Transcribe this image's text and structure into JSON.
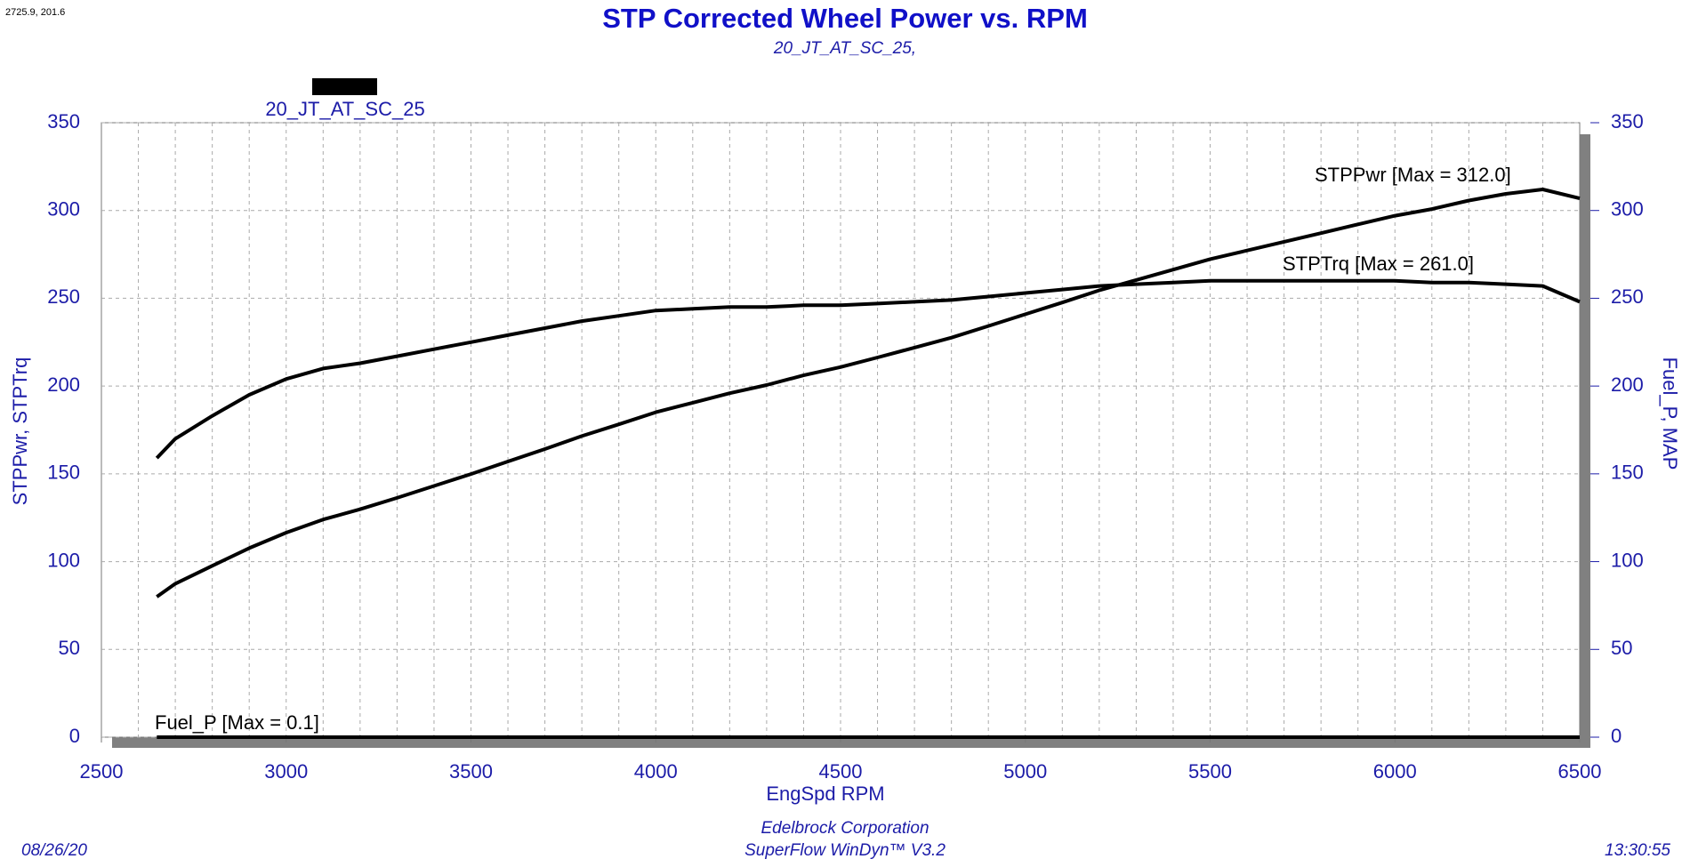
{
  "chart_data": {
    "type": "line",
    "corner_text": "2725.9, 201.6",
    "title": "STP Corrected Wheel Power vs. RPM",
    "subtitle": "20_JT_AT_SC_25,",
    "legend": {
      "name": "20_JT_AT_SC_25",
      "color": "#000000"
    },
    "xlabel": "EngSpd RPM",
    "ylabel": "STPPwr, STPTrq",
    "y2label": "Fuel_P, MAP",
    "footer": {
      "date": "08/26/20",
      "company": "Edelbrock Corporation",
      "software": "SuperFlow WinDyn™ V3.2",
      "time": "13:30:55"
    },
    "x": [
      2650,
      2700,
      2800,
      2900,
      3000,
      3100,
      3200,
      3300,
      3400,
      3500,
      3600,
      3700,
      3800,
      3900,
      4000,
      4100,
      4200,
      4300,
      4400,
      4500,
      4600,
      4700,
      4800,
      4900,
      5000,
      5100,
      5200,
      5300,
      5400,
      5500,
      5600,
      5700,
      5800,
      5900,
      6000,
      6100,
      6200,
      6300,
      6400,
      6500
    ],
    "series": [
      {
        "name": "STPPwr [Max = 312.0]",
        "color": "#000000",
        "values": [
          80,
          87.4,
          97.6,
          107.7,
          116.5,
          124,
          129.8,
          136.3,
          143.1,
          149.9,
          157,
          164.1,
          171.5,
          178.2,
          185.1,
          190.5,
          195.9,
          200.6,
          206.1,
          210.8,
          216.3,
          221.9,
          227.6,
          234.2,
          240.9,
          247.6,
          254.5,
          260.4,
          266.3,
          272.3,
          277.2,
          282.2,
          287.1,
          292.1,
          297,
          300.8,
          305.7,
          309.5,
          312,
          306.9
        ]
      },
      {
        "name": "STPTrq [Max = 261.0]",
        "color": "#000000",
        "values": [
          159,
          170,
          183,
          195,
          204,
          210,
          213,
          217,
          221,
          225,
          229,
          233,
          237,
          240,
          243,
          244,
          245,
          245,
          246,
          246,
          247,
          248,
          249,
          251,
          253,
          255,
          257,
          258,
          259,
          260,
          260,
          260,
          260,
          260,
          260,
          259,
          259,
          258,
          257,
          248
        ]
      },
      {
        "name": "Fuel_P [Max = 0.1]",
        "color": "#000000",
        "values": [
          0,
          0,
          0,
          0,
          0,
          0,
          0,
          0,
          0,
          0,
          0,
          0,
          0,
          0,
          0,
          0,
          0,
          0,
          0,
          0,
          0,
          0,
          0,
          0,
          0,
          0,
          0,
          0,
          0,
          0,
          0,
          0,
          0,
          0,
          0,
          0,
          0,
          0,
          0,
          0
        ]
      }
    ],
    "xlim": [
      2500,
      6500
    ],
    "xticks": [
      2500,
      3000,
      3500,
      4000,
      4500,
      5000,
      5500,
      6000,
      6500
    ],
    "ylim": [
      0,
      350
    ],
    "yticks": [
      0,
      50,
      100,
      150,
      200,
      250,
      300,
      350
    ],
    "y2lim": [
      0,
      350
    ],
    "y2ticks": [
      0,
      50,
      100,
      150,
      200,
      250,
      300,
      350
    ],
    "grid": true,
    "x_grid_step": 100
  }
}
